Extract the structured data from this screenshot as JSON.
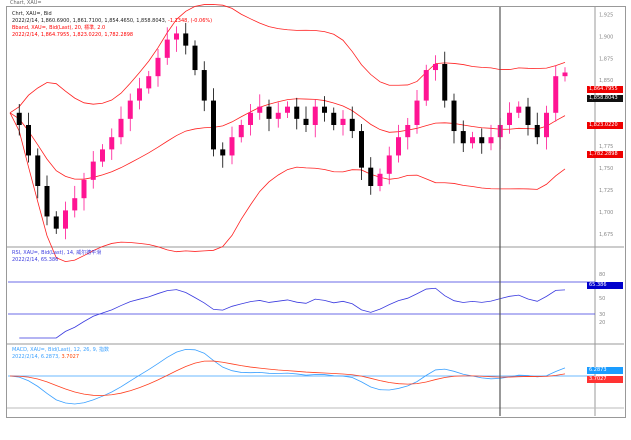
{
  "window_title": "Chart, XAU=",
  "main": {
    "legend_title": "Chrt, XAU=, Bid",
    "ohlc_line": "2022/2/14, 1,860.6900, 1,861.7100, 1,854.4650, 1,858.8043,",
    "change": "-1.1348, (-0.06%)",
    "bband_title": "Bband, XAU=, Bid(Last), 20, 標準, 2.0",
    "bband_values": "2022/2/14, 1,864.7955, 1,823.0220, 1,782.2898",
    "price_label": "1,858.8043",
    "bb_upper_label": "1,864.7955",
    "bb_mid_label": "1,823.0220",
    "bb_lower_label": "1,782.2898"
  },
  "rsi": {
    "title": "RSI, XAU=, Bid(Last), 14, 威尔德平滑",
    "values": "2022/2/14, 65.386",
    "label": "65.386",
    "levels": [
      70,
      30
    ]
  },
  "macd": {
    "title": "MACD, XAU=, Bid(Last), 12, 26, 9, 指数",
    "values": "2022/2/14, 6.2873,",
    "signal_value": "3.7027",
    "macd_label": "6.2873",
    "signal_label": "3.7027"
  },
  "colors": {
    "up": "#ff1493",
    "down": "#000000",
    "bband": "#ff2020",
    "rsi": "#3a3adf",
    "macd": "#3aa0ff",
    "signal": "#ff4020",
    "cursor": "#555555"
  },
  "chart_data": {
    "type": "candlestick",
    "series": [
      {
        "close": [
          1812.9,
          1799.0,
          1764.3,
          1729.5,
          1694.8,
          1680.9,
          1701.7,
          1715.6,
          1736.5,
          1757.3,
          1771.2,
          1785.1,
          1806.0,
          1826.8,
          1840.7,
          1854.6,
          1875.5,
          1896.3,
          1903.3,
          1889.4,
          1861.6,
          1826.8,
          1771.2,
          1764.3,
          1785.1,
          1799.0,
          1812.9,
          1819.9,
          1806.0,
          1812.9,
          1819.9,
          1806.0,
          1799.0,
          1819.9,
          1812.9,
          1799.0,
          1806.0,
          1792.1,
          1750.4,
          1729.5,
          1743.4,
          1764.3,
          1785.1,
          1799.0,
          1826.8,
          1861.6,
          1868.5,
          1826.8,
          1792.1,
          1778.2,
          1785.1,
          1778.2,
          1785.1,
          1799.0,
          1812.9,
          1819.9,
          1799.0,
          1785.1,
          1812.9,
          1854.6,
          1858.8
        ]
      }
    ],
    "ylim": [
      1660,
      1930
    ],
    "indicators": [
      "Bollinger Bands 20, 2.0",
      "RSI 14",
      "MACD 12, 26, 9"
    ]
  }
}
